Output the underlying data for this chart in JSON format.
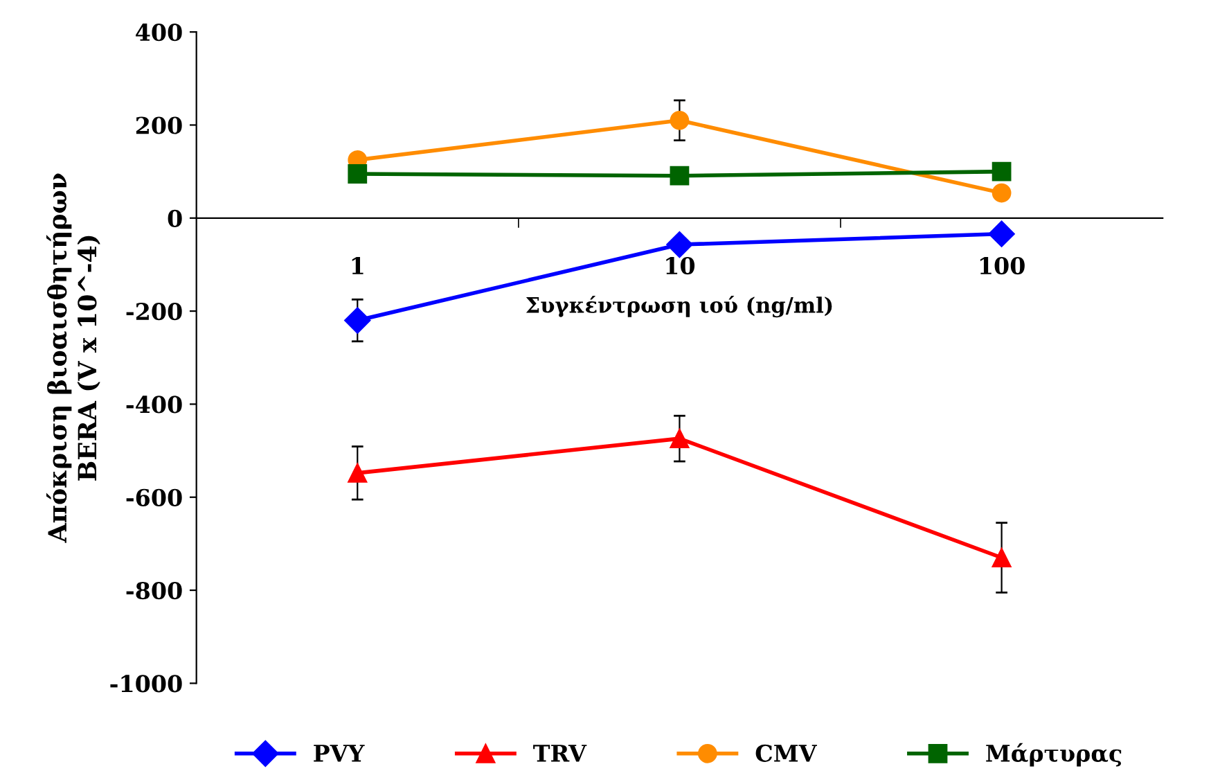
{
  "chart_data": {
    "type": "line",
    "xlabel": "Συγκέντρωση ιού (ng/ml)",
    "ylabel": "Απόκριση βιοαισθητήρων\nBERA (V x 10^-4)",
    "categories": [
      "1",
      "10",
      "100"
    ],
    "series": [
      {
        "name": "PVY",
        "color": "#0000ff",
        "marker": "diamond",
        "values": [
          -220,
          -57,
          -34
        ],
        "errors": [
          45,
          null,
          null
        ]
      },
      {
        "name": "TRV",
        "color": "#ff0000",
        "marker": "triangle",
        "values": [
          -548,
          -474,
          -730
        ],
        "errors": [
          57,
          49,
          75
        ]
      },
      {
        "name": "CMV",
        "color": "#ff8c00",
        "marker": "circle",
        "values": [
          125,
          210,
          54
        ],
        "errors": [
          null,
          43,
          null
        ]
      },
      {
        "name": "Μάρτυρας",
        "color": "#006400",
        "marker": "square",
        "values": [
          95,
          91,
          100
        ]
      }
    ],
    "ylim": [
      -1000,
      400
    ],
    "yticks": [
      -1000,
      -800,
      -600,
      -400,
      -200,
      0,
      200,
      400
    ],
    "grid": false,
    "legend": "bottom",
    "line_style": "solid"
  }
}
